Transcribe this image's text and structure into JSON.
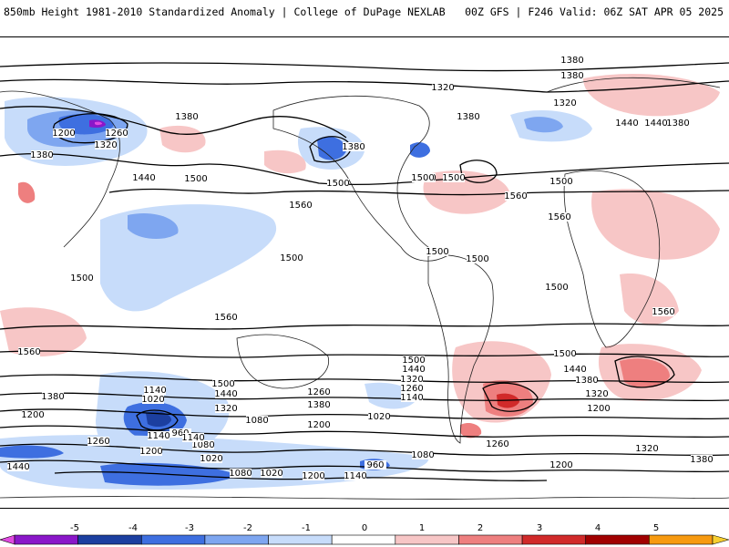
{
  "header": {
    "left": "850mb Height 1981-2010 Standardized Anomaly | College of DuPage NEXLAB",
    "right": "00Z GFS | F246 Valid: 06Z SAT APR 05 2025"
  },
  "contour_labels": [
    "1380",
    "1380",
    "1320",
    "1320",
    "1380",
    "1380",
    "1440",
    "1200",
    "1260",
    "1320",
    "1380",
    "1440",
    "1500",
    "1500",
    "1380",
    "1500",
    "1440",
    "1500",
    "1560",
    "1500",
    "1560",
    "1560",
    "1500",
    "1500",
    "1500",
    "1500",
    "1500",
    "1560",
    "1560",
    "1500",
    "1440",
    "1380",
    "1320",
    "1200",
    "1500",
    "1440",
    "1320",
    "1260",
    "1140",
    "1500",
    "1380",
    "1140",
    "1380",
    "1200",
    "1020",
    "1440",
    "1260",
    "1320",
    "1200",
    "1020",
    "1080",
    "1140",
    "960",
    "1260",
    "1080",
    "1020",
    "1200",
    "1140",
    "960",
    "1080",
    "1200",
    "1140",
    "1020",
    "1080",
    "1200",
    "1440",
    "1320",
    "1380",
    "1440",
    "1380",
    "1560",
    "1260"
  ],
  "colorbar": {
    "ticks": [
      "-5",
      "-4",
      "-3",
      "-2",
      "-1",
      "0",
      "1",
      "2",
      "3",
      "4",
      "5"
    ],
    "colors": [
      "#e14ae1",
      "#8a17c9",
      "#1c3fa0",
      "#3e6fe0",
      "#7ea6f0",
      "#c7dcfa",
      "#ffffff",
      "#f7c6c6",
      "#ee7f7f",
      "#d12a2a",
      "#a10000",
      "#f79a10",
      "#f7cf30"
    ]
  },
  "map": {
    "anomaly_colors": {
      "neg1": "#c7dcfa",
      "neg2": "#7ea6f0",
      "neg3": "#3e6fe0",
      "neg4": "#1c3fa0",
      "neg5": "#e14ae1",
      "pos1": "#f7c6c6",
      "pos2": "#ee7f7f",
      "pos3": "#d12a2a"
    }
  }
}
